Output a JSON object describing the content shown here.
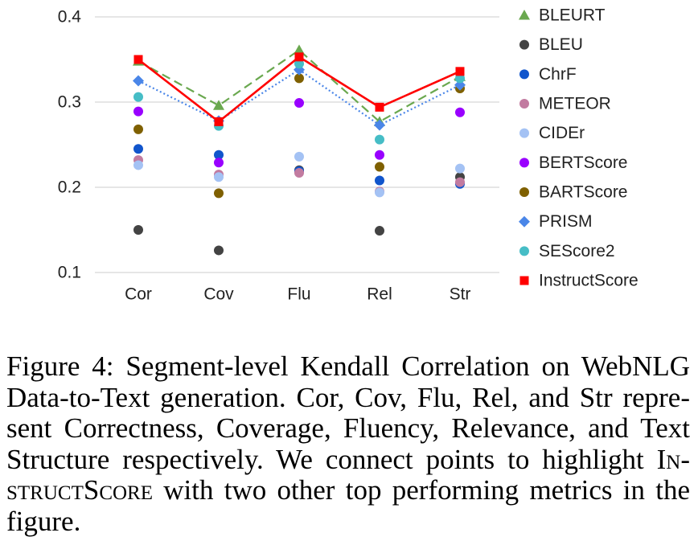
{
  "chart_data": {
    "type": "scatter",
    "categories": [
      "Cor",
      "Cov",
      "Flu",
      "Rel",
      "Str"
    ],
    "ylim": [
      0.1,
      0.4
    ],
    "yticks": [
      0.1,
      0.2,
      0.3,
      0.4
    ],
    "grid": true,
    "legend": "right",
    "series": [
      {
        "name": "BLEURT",
        "marker": "triangle",
        "color": "#6aa84f",
        "line": "dashed",
        "values": [
          0.348,
          0.296,
          0.361,
          0.277,
          0.33
        ]
      },
      {
        "name": "BLEU",
        "marker": "circle",
        "color": "#434343",
        "line": "none",
        "values": [
          0.15,
          0.126,
          0.22,
          0.149,
          0.212
        ]
      },
      {
        "name": "ChrF",
        "marker": "circle",
        "color": "#1155cc",
        "line": "none",
        "values": [
          0.245,
          0.238,
          0.219,
          0.208,
          0.204
        ]
      },
      {
        "name": "METEOR",
        "marker": "circle",
        "color": "#c27ba0",
        "line": "none",
        "values": [
          0.232,
          0.215,
          0.217,
          0.195,
          0.206
        ]
      },
      {
        "name": "CIDEr",
        "marker": "circle",
        "color": "#a4c2f4",
        "line": "none",
        "values": [
          0.226,
          0.212,
          0.236,
          0.194,
          0.222
        ]
      },
      {
        "name": "BERTScore",
        "marker": "circle",
        "color": "#9900ff",
        "line": "none",
        "values": [
          0.289,
          0.229,
          0.299,
          0.238,
          0.288
        ]
      },
      {
        "name": "BARTScore",
        "marker": "circle",
        "color": "#7f6000",
        "line": "none",
        "values": [
          0.268,
          0.193,
          0.328,
          0.224,
          0.316
        ]
      },
      {
        "name": "PRISM",
        "marker": "diamond",
        "color": "#4a86e8",
        "line": "dotted",
        "values": [
          0.325,
          0.278,
          0.338,
          0.273,
          0.32
        ]
      },
      {
        "name": "SEScore2",
        "marker": "circle",
        "color": "#46bdc6",
        "line": "none",
        "values": [
          0.306,
          0.272,
          0.345,
          0.256,
          0.328
        ]
      },
      {
        "name": "InstructScore",
        "marker": "square",
        "color": "#ff0000",
        "line": "solid",
        "values": [
          0.35,
          0.277,
          0.353,
          0.294,
          0.336
        ]
      }
    ]
  },
  "caption": {
    "lines": [
      [
        "Figure 4: Segment-level Kendall Correlation on WebNLG"
      ],
      [
        "Data-to-Text generation. Cor, Cov, Flu, Rel, and Str repre-"
      ],
      [
        "sent Correctness, Coverage, Fluency, Relevance, and Text"
      ],
      [
        "Structure respectively. We connect points to highlight ",
        "In-"
      ],
      [
        "structScore",
        " with two other top performing metrics in the"
      ],
      [
        "figure."
      ]
    ]
  }
}
